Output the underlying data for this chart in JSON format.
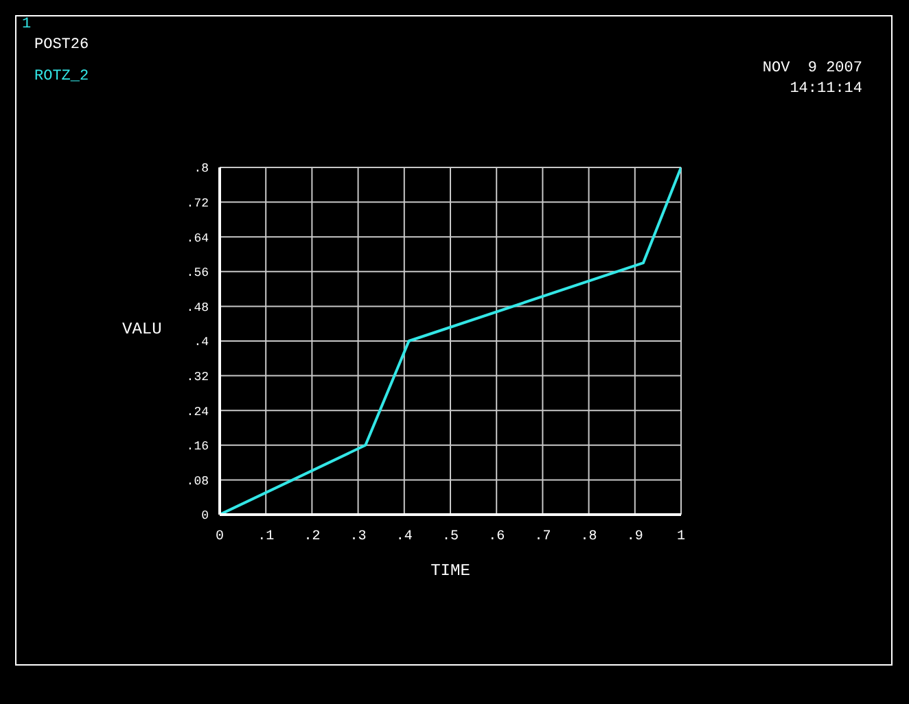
{
  "chart_data": {
    "type": "line",
    "xlabel": "TIME",
    "ylabel": "VALU",
    "annotations": [
      "1",
      "POST26",
      "NOV  9 2007",
      "14:11:14"
    ],
    "x": [
      0,
      0.316,
      0.41,
      0.918,
      1
    ],
    "series": [
      {
        "name": "ROTZ_2",
        "color": "#33e6e6",
        "values": [
          0,
          0.16,
          0.4,
          0.58,
          0.8
        ]
      }
    ],
    "xlim": [
      0,
      1
    ],
    "xticks": [
      0,
      {
        "value": 0.1,
        "label": ".1"
      },
      {
        "value": 0.2,
        "label": ".2"
      },
      {
        "value": 0.3,
        "label": ".3"
      },
      {
        "value": 0.4,
        "label": ".4"
      },
      {
        "value": 0.5,
        "label": ".5"
      },
      {
        "value": 0.6,
        "label": ".6"
      },
      {
        "value": 0.7,
        "label": ".7"
      },
      {
        "value": 0.8,
        "label": ".8"
      },
      {
        "value": 0.9,
        "label": ".9"
      },
      1
    ],
    "ylim": [
      0,
      0.8
    ],
    "yticks": [
      0,
      {
        "value": 0.08,
        "label": ".08"
      },
      {
        "value": 0.16,
        "label": ".16"
      },
      {
        "value": 0.24,
        "label": ".24"
      },
      {
        "value": 0.32,
        "label": ".32"
      },
      {
        "value": 0.4,
        "label": ".4"
      },
      {
        "value": 0.48,
        "label": ".48"
      },
      {
        "value": 0.56,
        "label": ".56"
      },
      {
        "value": 0.64,
        "label": ".64"
      },
      {
        "value": 0.72,
        "label": ".72"
      },
      {
        "value": 0.8,
        "label": ".8"
      }
    ],
    "grid": true,
    "legend": "top left",
    "marker": "none",
    "line_style": "solid"
  }
}
